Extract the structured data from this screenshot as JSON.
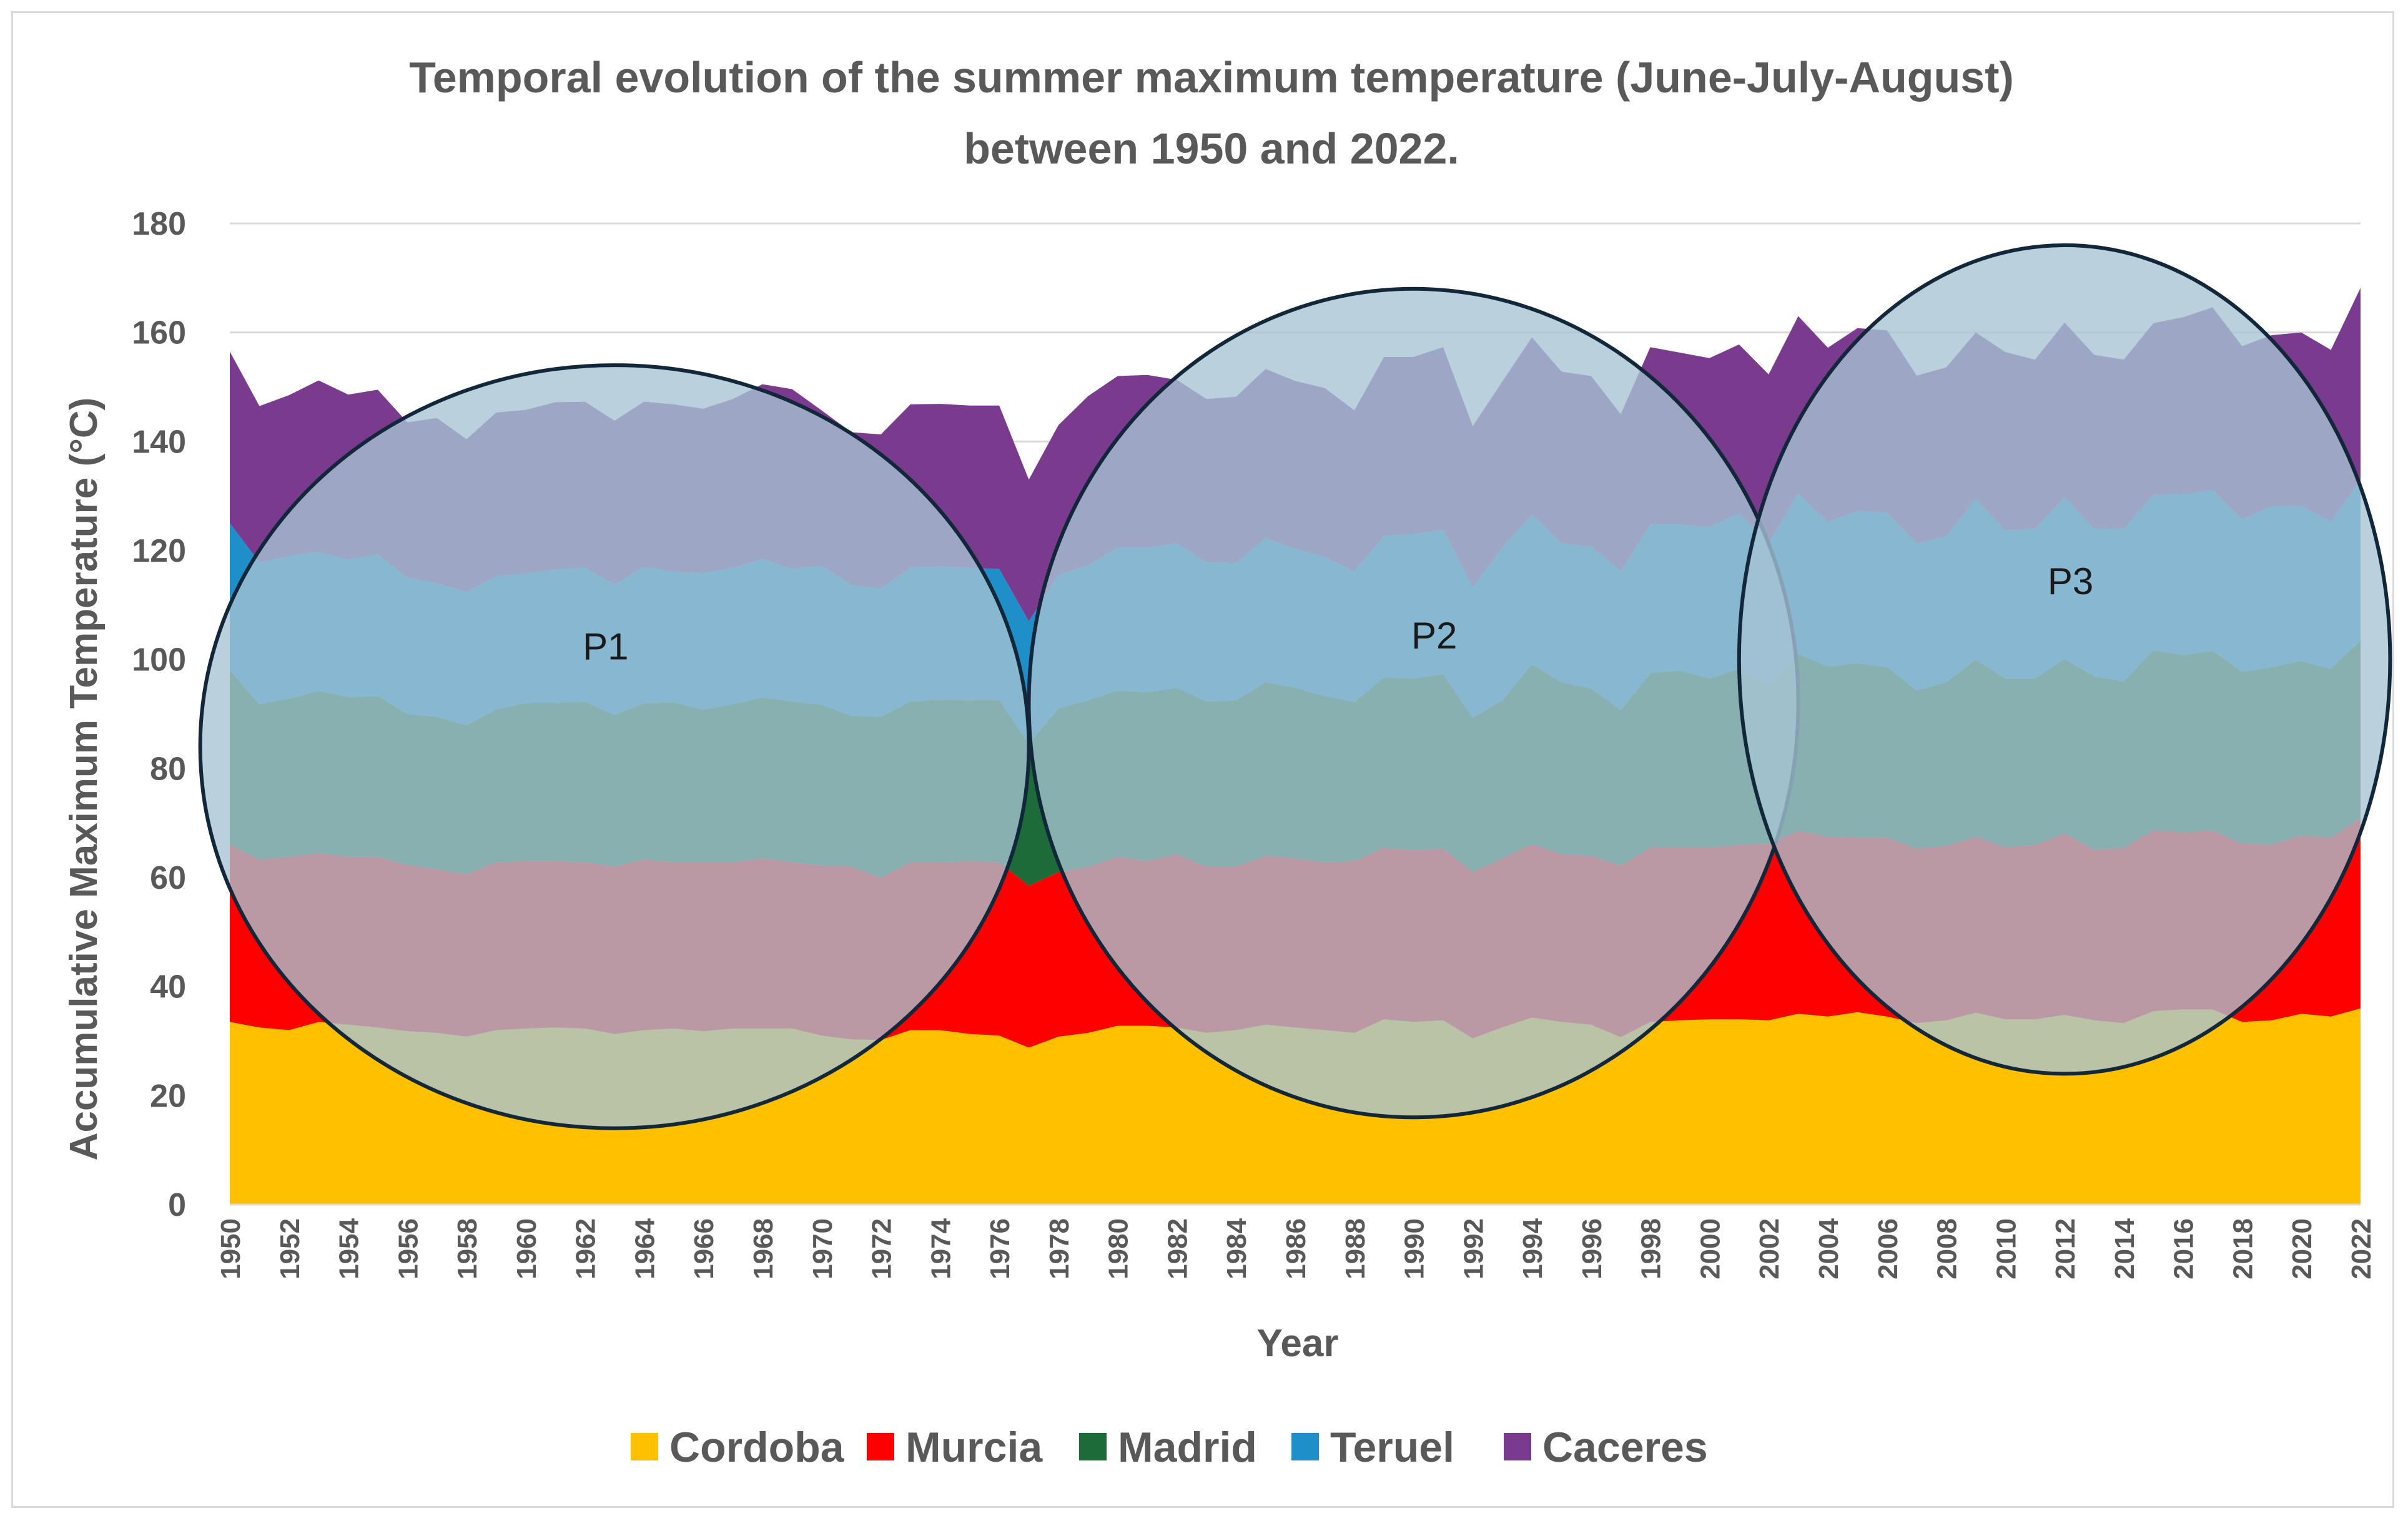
{
  "chart_data": {
    "type": "area",
    "stacked": true,
    "title": "Temporal evolution of the summer maximum temperature (June-July-August)",
    "title_line2": "between 1950 and 2022.",
    "xlabel": "Year",
    "ylabel": "Accumulative Maximum Temperature (°C)",
    "ylim": [
      0,
      180
    ],
    "yticks": [
      0,
      20,
      40,
      60,
      80,
      100,
      120,
      140,
      160,
      180
    ],
    "xlim": [
      1950,
      2022
    ],
    "xtick_labels": [
      "1950",
      "1952",
      "1954",
      "1956",
      "1958",
      "1960",
      "1962",
      "1964",
      "1966",
      "1968",
      "1970",
      "1972",
      "1974",
      "1976",
      "1978",
      "1980",
      "1982",
      "1984",
      "1986",
      "1988",
      "1990",
      "1992",
      "1994",
      "1996",
      "1998",
      "2000",
      "2002",
      "2004",
      "2006",
      "2008",
      "2010",
      "2012",
      "2014",
      "2016",
      "2018",
      "2020",
      "2022"
    ],
    "legend_position": "bottom",
    "years": [
      1950,
      1951,
      1952,
      1953,
      1954,
      1955,
      1956,
      1957,
      1958,
      1959,
      1960,
      1961,
      1962,
      1963,
      1964,
      1965,
      1966,
      1967,
      1968,
      1969,
      1970,
      1971,
      1972,
      1973,
      1974,
      1975,
      1976,
      1977,
      1978,
      1979,
      1980,
      1981,
      1982,
      1983,
      1984,
      1985,
      1986,
      1987,
      1988,
      1989,
      1990,
      1991,
      1992,
      1993,
      1994,
      1995,
      1996,
      1997,
      1998,
      1999,
      2000,
      2001,
      2002,
      2003,
      2004,
      2005,
      2006,
      2007,
      2008,
      2009,
      2010,
      2011,
      2012,
      2013,
      2014,
      2015,
      2016,
      2017,
      2018,
      2019,
      2020,
      2021,
      2022
    ],
    "series": [
      {
        "name": "Cordoba",
        "color": "#ffc000",
        "values": [
          33.5,
          32.5,
          32,
          33.5,
          33,
          32.5,
          31.8,
          31.5,
          30.8,
          32,
          32.3,
          32.5,
          32.3,
          31.3,
          32,
          32.3,
          31.8,
          32.3,
          32.3,
          32.3,
          31,
          30.3,
          30.2,
          32,
          32,
          31.3,
          31,
          28.8,
          30.8,
          31.5,
          32.8,
          32.8,
          32.5,
          31.5,
          32,
          33,
          32.5,
          32,
          31.5,
          34,
          33.5,
          33.8,
          30.5,
          32.5,
          34.3,
          33.5,
          33,
          30.7,
          33.5,
          33.8,
          34,
          34,
          33.8,
          35,
          34.5,
          35.3,
          34.5,
          33.3,
          33.8,
          35.2,
          34,
          34,
          34.8,
          33.8,
          33.3,
          35.5,
          35.8,
          35.8,
          33.5,
          33.8,
          35,
          34.5,
          36
        ]
      },
      {
        "name": "Murcia",
        "color": "#ff0000",
        "values": [
          32.5,
          30.8,
          31.8,
          31,
          30.8,
          31.3,
          30.5,
          30,
          29.8,
          30.8,
          30.7,
          30.5,
          30.5,
          30.7,
          31.3,
          30.5,
          31,
          30.5,
          31.2,
          30.5,
          31.2,
          31.7,
          29.8,
          30.8,
          30.8,
          31.7,
          31.8,
          29.7,
          30.2,
          30.5,
          31,
          30.2,
          31.8,
          30.5,
          30,
          31,
          31,
          30.8,
          31.5,
          31.5,
          31.5,
          31.5,
          30.5,
          31,
          31.8,
          30.8,
          31,
          31.5,
          32,
          31.7,
          31.5,
          32,
          32.5,
          33.5,
          33,
          32,
          32.8,
          32,
          32,
          32.3,
          31.5,
          32,
          33.3,
          31.3,
          32.2,
          33.2,
          32.5,
          32.8,
          32.7,
          32.3,
          32.7,
          32.8,
          35
        ]
      },
      {
        "name": "Madrid",
        "color": "#1e6b3a",
        "values": [
          32,
          28.5,
          29,
          29.7,
          29.3,
          29.5,
          27.7,
          28,
          27.3,
          28,
          29,
          29,
          29.5,
          27.8,
          28.7,
          29.3,
          28,
          29,
          29.5,
          29.5,
          29.5,
          27.7,
          29.5,
          29.5,
          29.8,
          29.5,
          29.8,
          26,
          30,
          30.5,
          30.5,
          31,
          30.5,
          30.3,
          30.5,
          31.8,
          31.3,
          30.5,
          29.2,
          31.2,
          31.5,
          32,
          28.3,
          29,
          33,
          31.5,
          30.7,
          28.5,
          32,
          32.5,
          31,
          32.3,
          29,
          32.5,
          31.2,
          32,
          31.3,
          29,
          30,
          32.5,
          31,
          30.5,
          32,
          31.8,
          30.5,
          33,
          32.5,
          33,
          31.5,
          32.5,
          32,
          31,
          32.5
        ]
      },
      {
        "name": "Teruel",
        "color": "#1f8fc9",
        "values": [
          27,
          26,
          26.2,
          25.5,
          25.2,
          26,
          25,
          24.5,
          24.5,
          24.5,
          23.8,
          24.5,
          24.5,
          24,
          25,
          24,
          25,
          25,
          25.5,
          24.3,
          25.5,
          24,
          23.5,
          24.5,
          24.5,
          24.3,
          24,
          22.5,
          24.5,
          24.8,
          26.2,
          26.5,
          26.5,
          25.5,
          25.2,
          26.5,
          25.5,
          25.5,
          24,
          26,
          26.5,
          26.5,
          24,
          28,
          27.5,
          25.5,
          26,
          25.5,
          27.3,
          26.8,
          27.8,
          28.5,
          26,
          29.5,
          26.5,
          28,
          28.3,
          27,
          26.8,
          29.5,
          27.2,
          27.5,
          29.7,
          27,
          28,
          28.5,
          29.5,
          29.5,
          28,
          29.5,
          28.5,
          27,
          29.5
        ]
      },
      {
        "name": "Caceres",
        "color": "#7a3b8f",
        "values": [
          31.5,
          28.7,
          29.5,
          31.5,
          30.3,
          30.2,
          28.5,
          30.3,
          28,
          30,
          30,
          30.7,
          30.5,
          30,
          30.3,
          30.7,
          30.2,
          31,
          32,
          33,
          28.5,
          28,
          28.3,
          30,
          29.8,
          29.8,
          30,
          26,
          27.5,
          31,
          31.5,
          31.7,
          30,
          30,
          30.5,
          31,
          30.8,
          31,
          29.5,
          32.8,
          32.5,
          33.5,
          29.5,
          30.5,
          32.5,
          31.5,
          31.3,
          28.8,
          32.5,
          31.5,
          31,
          31,
          31,
          32.5,
          32,
          33.5,
          33.5,
          30.8,
          31,
          30.5,
          32.7,
          31,
          32,
          32,
          31,
          31.5,
          32.5,
          33.5,
          31.8,
          31.4,
          31.8,
          31.5,
          35.2
        ]
      }
    ],
    "ellipse_annotations": [
      {
        "label": "P1",
        "period": [
          1949,
          1977
        ]
      },
      {
        "label": "P2",
        "period": [
          1977,
          2003
        ]
      },
      {
        "label": "P3",
        "period": [
          2001,
          2023
        ]
      }
    ]
  },
  "colors": {
    "text": "#595959",
    "grid": "#d9d9d9",
    "ellipse_fill": "#a7c4d4",
    "ellipse_stroke": "#13273a"
  }
}
